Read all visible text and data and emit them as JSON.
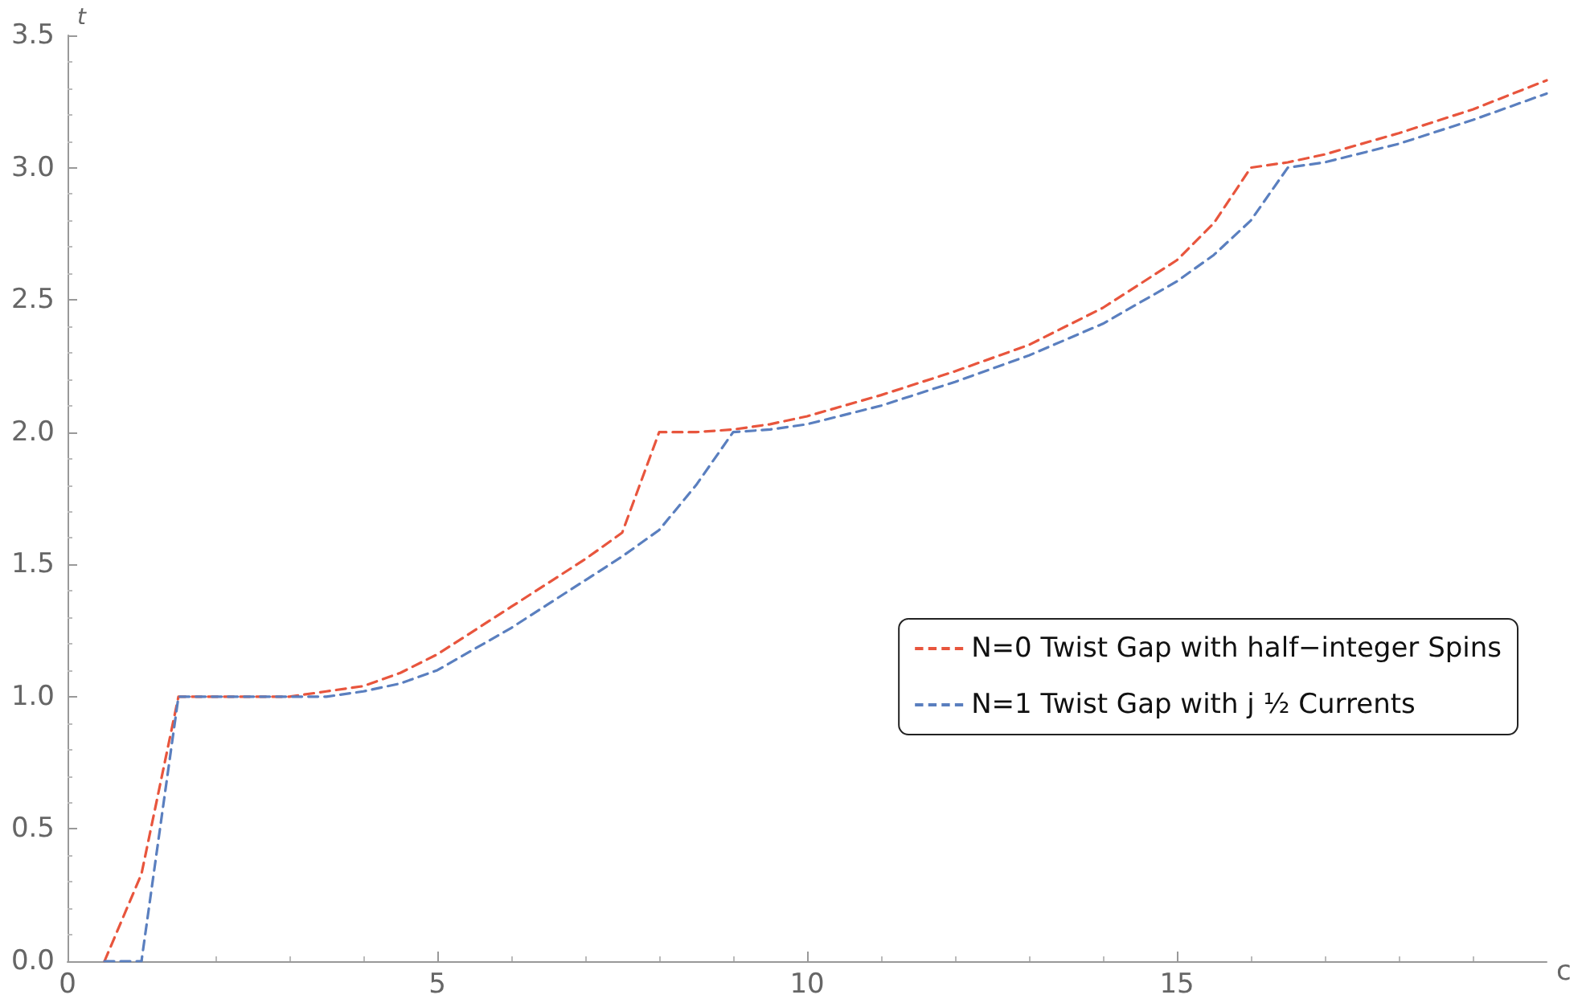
{
  "chart_data": {
    "type": "line",
    "xlabel": "c",
    "ylabel": "t",
    "xlim": [
      0,
      20
    ],
    "ylim": [
      0,
      3.5
    ],
    "xticks": [
      0,
      5,
      10,
      15
    ],
    "yticks": [
      {
        "value": 0,
        "label": "0.0"
      },
      0.5,
      {
        "value": 1,
        "label": "1.0"
      },
      1.5,
      {
        "value": 2,
        "label": "2.0"
      },
      2.5,
      {
        "value": 3,
        "label": "3.0"
      },
      3.5
    ],
    "grid": false,
    "legend": "right",
    "marker": "none",
    "line_style": "dashed",
    "series": [
      {
        "name": "N=0 Twist Gap with half−integer Spins",
        "color": "#e8553d",
        "x": [
          0.5,
          1,
          1.5,
          2,
          2.5,
          3,
          3.5,
          4,
          4.5,
          5,
          5.5,
          6,
          6.5,
          7,
          7.5,
          8,
          8.5,
          9,
          9.5,
          10,
          11,
          12,
          13,
          14,
          15,
          15.5,
          16,
          16.5,
          17,
          18,
          19,
          20
        ],
        "values": [
          0,
          0.33,
          1,
          1,
          1,
          1,
          1.02,
          1.04,
          1.09,
          1.16,
          1.25,
          1.34,
          1.43,
          1.52,
          1.62,
          2,
          2,
          2.01,
          2.03,
          2.06,
          2.14,
          2.23,
          2.33,
          2.47,
          2.65,
          2.79,
          3,
          3.02,
          3.05,
          3.13,
          3.22,
          3.33
        ]
      },
      {
        "name": "N=1 Twist Gap with j ½ Currents",
        "color": "#5a7fbf",
        "x": [
          0.5,
          1,
          1.5,
          2,
          2.5,
          3,
          3.5,
          4,
          4.5,
          5,
          5.5,
          6,
          6.5,
          7,
          7.5,
          8,
          8.5,
          9,
          9.5,
          10,
          11,
          12,
          13,
          14,
          15,
          15.5,
          16,
          16.5,
          17,
          18,
          19,
          20
        ],
        "values": [
          0,
          0,
          1,
          1,
          1,
          1,
          1,
          1.02,
          1.05,
          1.1,
          1.18,
          1.26,
          1.35,
          1.44,
          1.53,
          1.63,
          1.8,
          2,
          2.01,
          2.03,
          2.1,
          2.19,
          2.29,
          2.41,
          2.57,
          2.67,
          2.8,
          3,
          3.02,
          3.09,
          3.18,
          3.28
        ]
      }
    ]
  }
}
